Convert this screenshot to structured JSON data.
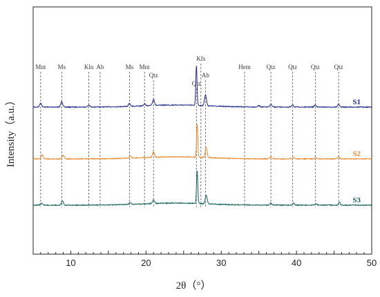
{
  "chart_data": {
    "type": "line",
    "xlabel": "2θ（°）",
    "ylabel": "Intensity（a.u.）",
    "xlim": [
      5,
      50
    ],
    "xticks": [
      10,
      20,
      30,
      40,
      50
    ],
    "yticks_shown": false,
    "legend": "inline-right",
    "series": [
      {
        "name": "S1",
        "color": "#1f2a8c",
        "baseline": 155,
        "peaks": [
          [
            6.0,
            6
          ],
          [
            8.8,
            8
          ],
          [
            12.4,
            3
          ],
          [
            17.8,
            4
          ],
          [
            19.8,
            3
          ],
          [
            21.0,
            9
          ],
          [
            26.7,
            58
          ],
          [
            27.9,
            16
          ],
          [
            35.0,
            2
          ],
          [
            36.6,
            4
          ],
          [
            39.5,
            3
          ],
          [
            42.5,
            3
          ],
          [
            45.6,
            4
          ]
        ]
      },
      {
        "name": "S2",
        "color": "#e98a2e",
        "baseline": 230,
        "peaks": [
          [
            6.2,
            6
          ],
          [
            9.0,
            5
          ],
          [
            17.9,
            3
          ],
          [
            21.0,
            8
          ],
          [
            26.8,
            48
          ],
          [
            28.0,
            14
          ],
          [
            36.6,
            3
          ],
          [
            39.6,
            2
          ],
          [
            42.6,
            2
          ],
          [
            45.6,
            3
          ]
        ]
      },
      {
        "name": "S3",
        "color": "#16645c",
        "baseline": 297,
        "peaks": [
          [
            6.1,
            3
          ],
          [
            8.9,
            6
          ],
          [
            17.9,
            3
          ],
          [
            21.0,
            6
          ],
          [
            26.8,
            47
          ],
          [
            28.0,
            12
          ],
          [
            36.6,
            3
          ],
          [
            39.6,
            3
          ],
          [
            42.6,
            2
          ],
          [
            45.7,
            4
          ]
        ]
      }
    ],
    "phase_markers": [
      {
        "label": "Mnt",
        "x": 6.0,
        "label_row": 1
      },
      {
        "label": "Ms",
        "x": 8.8,
        "label_row": 1
      },
      {
        "label": "Kln",
        "x": 12.4,
        "label_row": 1
      },
      {
        "label": "Ab",
        "x": 13.9,
        "label_row": 1
      },
      {
        "label": "Ms",
        "x": 17.8,
        "label_row": 1
      },
      {
        "label": "Mnt",
        "x": 19.8,
        "label_row": 1
      },
      {
        "label": "Qtz",
        "x": 21.0,
        "label_row": 0
      },
      {
        "label": "Qtz",
        "x": 26.7,
        "label_row": -1
      },
      {
        "label": "Kfs",
        "x": 27.3,
        "label_row": 2
      },
      {
        "label": "Ab",
        "x": 27.9,
        "label_row": 0
      },
      {
        "label": "Hem",
        "x": 33.1,
        "label_row": 1
      },
      {
        "label": "Qtz",
        "x": 36.6,
        "label_row": 1
      },
      {
        "label": "Qtz",
        "x": 39.5,
        "label_row": 1
      },
      {
        "label": "Qtz",
        "x": 42.5,
        "label_row": 1
      },
      {
        "label": "Qtz",
        "x": 45.6,
        "label_row": 1
      }
    ]
  }
}
